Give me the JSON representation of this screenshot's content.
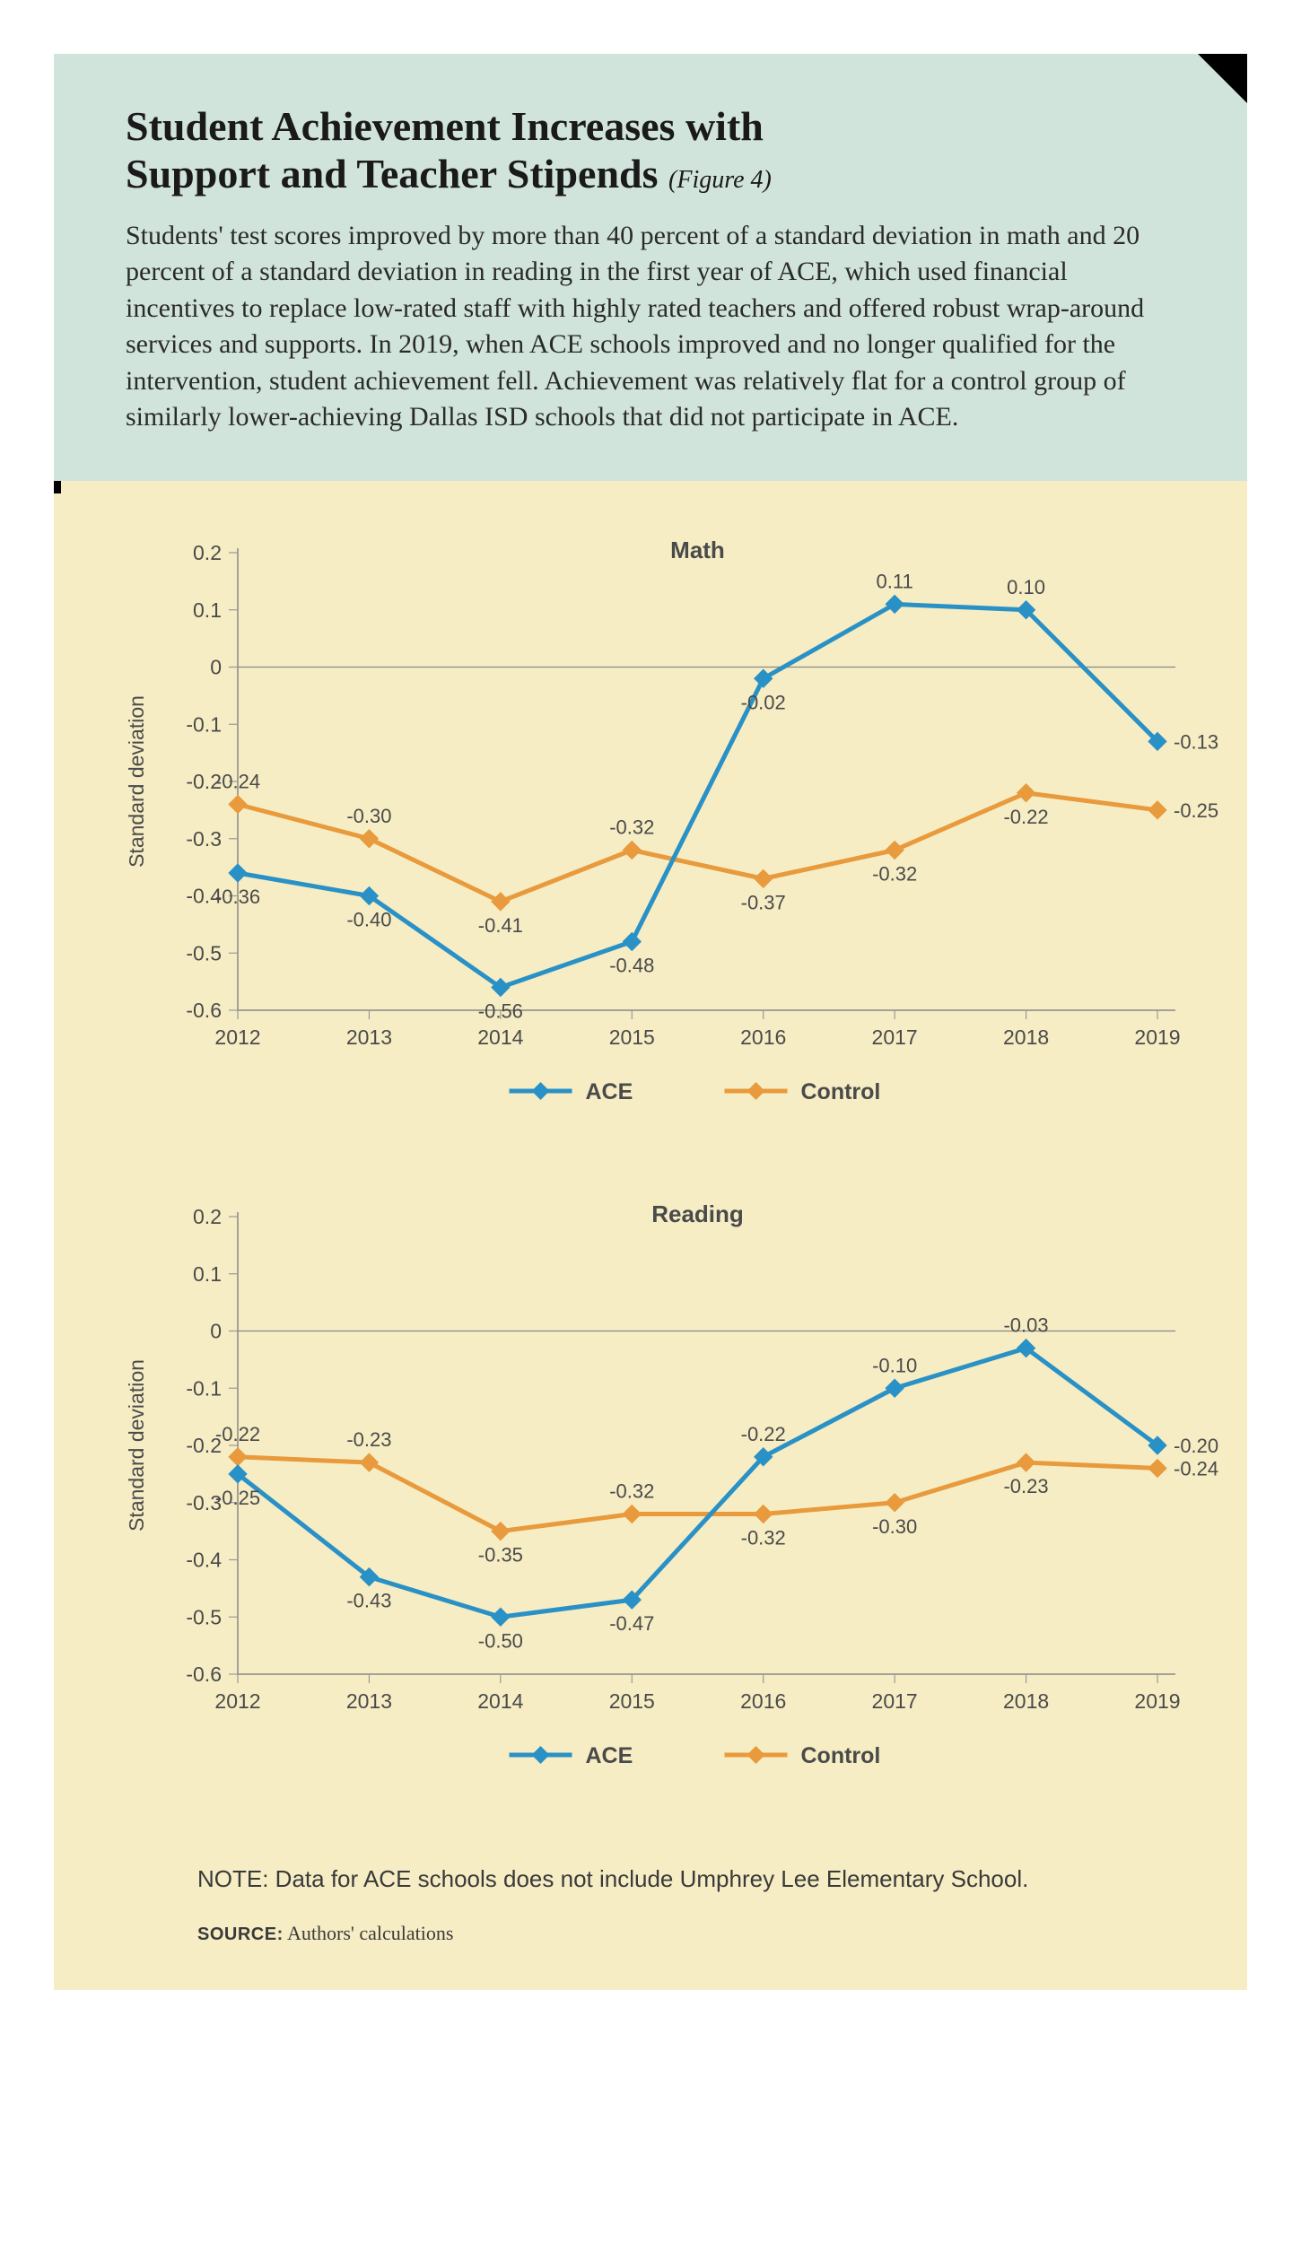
{
  "header": {
    "title_line1": "Student Achievement Increases with",
    "title_line2": "Support and Teacher Stipends",
    "figure_label": "(Figure 4)",
    "caption": "Students' test scores improved by more than 40 percent of a standard deviation in math and 20 percent of a standard deviation in reading in the first year of ACE, which used financial incentives to replace low-rated staff with highly rated teachers and offered robust wrap-around services and supports. In 2019, when ACE schools improved and no longer qualified for the intervention, student achievement fell. Achievement was relatively flat for a control group of similarly lower-achieving Dallas ISD schools that did not participate in ACE.",
    "header_bg": "#d1e4db",
    "title_color": "#1a1a1a",
    "caption_color": "#2a2a2a",
    "title_fontsize": 46,
    "caption_fontsize": 30
  },
  "charts_bg": "#f6edc4",
  "chart_common": {
    "years": [
      "2012",
      "2013",
      "2014",
      "2015",
      "2016",
      "2017",
      "2018",
      "2019"
    ],
    "ylabel": "Standard deviation",
    "ylim": [
      -0.6,
      0.2
    ],
    "ytick_step": 0.1,
    "yticks": [
      "0.2",
      "0.1",
      "0",
      "-0.1",
      "-0.2",
      "-0.3",
      "-0.4",
      "-0.5",
      "-0.6"
    ],
    "axis_color": "#888888",
    "grid_zero_color": "#888888",
    "tick_color": "#999999",
    "text_color": "#4a4a4a",
    "title_fontsize": 26,
    "label_fontsize": 23,
    "tick_fontsize": 23,
    "data_label_fontsize": 22,
    "line_width": 5,
    "marker_size": 10,
    "legend": {
      "ace_label": "ACE",
      "control_label": "Control"
    },
    "series_colors": {
      "ace": "#2a91c6",
      "control": "#e89a3c"
    },
    "marker_style": "diamond"
  },
  "math_chart": {
    "title": "Math",
    "ace": [
      -0.36,
      -0.4,
      -0.56,
      -0.48,
      -0.02,
      0.11,
      0.1,
      -0.13
    ],
    "control": [
      -0.24,
      -0.3,
      -0.41,
      -0.32,
      -0.37,
      -0.32,
      -0.22,
      -0.25
    ],
    "ace_label_pos": [
      "below",
      "below",
      "below",
      "below",
      "below",
      "above",
      "above",
      "right"
    ],
    "control_label_pos": [
      "above",
      "above",
      "below",
      "above",
      "below",
      "below",
      "below",
      "right"
    ]
  },
  "reading_chart": {
    "title": "Reading",
    "ace": [
      -0.25,
      -0.43,
      -0.5,
      -0.47,
      -0.22,
      -0.1,
      -0.03,
      -0.2
    ],
    "control": [
      -0.22,
      -0.23,
      -0.35,
      -0.32,
      -0.32,
      -0.3,
      -0.23,
      -0.24
    ],
    "ace_label_pos": [
      "below",
      "below",
      "below",
      "below",
      "above",
      "above",
      "above",
      "right"
    ],
    "control_label_pos": [
      "above",
      "above",
      "below",
      "above",
      "below",
      "below",
      "below",
      "right"
    ]
  },
  "note": "NOTE: Data for ACE schools does not include Umphrey Lee Elementary School.",
  "source_label": "SOURCE:",
  "source_text": " Authors' calculations"
}
